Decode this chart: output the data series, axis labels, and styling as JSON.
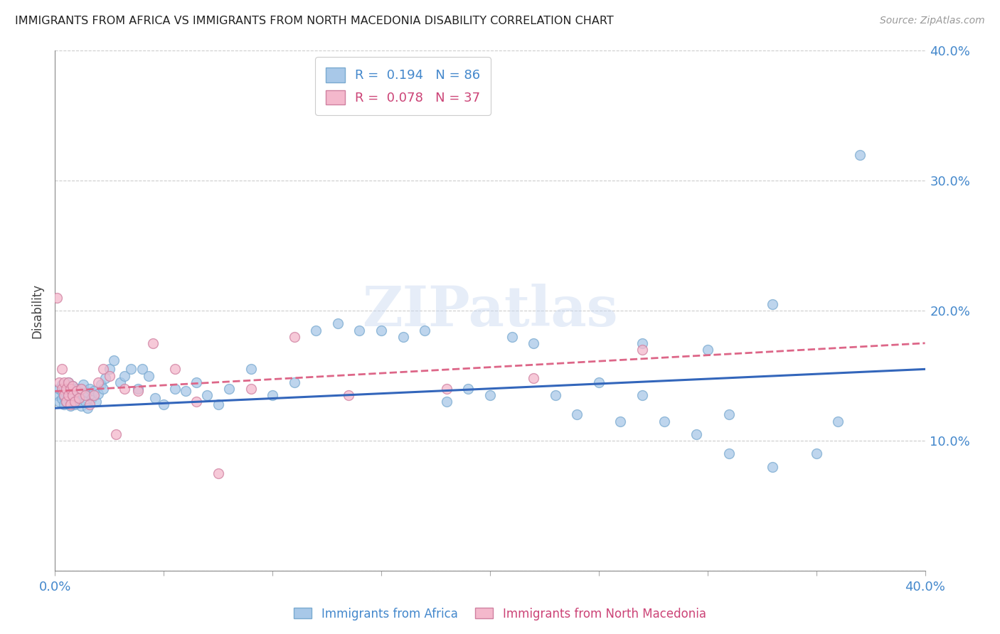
{
  "title": "IMMIGRANTS FROM AFRICA VS IMMIGRANTS FROM NORTH MACEDONIA DISABILITY CORRELATION CHART",
  "source": "Source: ZipAtlas.com",
  "ylabel": "Disability",
  "africa_color": "#a8c8e8",
  "africa_edge": "#7aaad0",
  "macedonia_color": "#f4b8cc",
  "macedonia_edge": "#d080a0",
  "africa_line_color": "#3366bb",
  "macedonia_line_color": "#dd6688",
  "africa_R": 0.194,
  "africa_N": 86,
  "macedonia_R": 0.078,
  "macedonia_N": 37,
  "watermark": "ZIPatlas",
  "legend_label_africa": "Immigrants from Africa",
  "legend_label_macedonia": "Immigrants from North Macedonia",
  "xlim": [
    0.0,
    0.4
  ],
  "ylim": [
    0.0,
    0.4
  ],
  "africa_scatter_x": [
    0.001,
    0.002,
    0.002,
    0.003,
    0.003,
    0.003,
    0.004,
    0.004,
    0.004,
    0.005,
    0.005,
    0.005,
    0.006,
    0.006,
    0.007,
    0.007,
    0.007,
    0.008,
    0.008,
    0.009,
    0.009,
    0.01,
    0.01,
    0.011,
    0.011,
    0.012,
    0.012,
    0.013,
    0.013,
    0.014,
    0.015,
    0.015,
    0.016,
    0.017,
    0.018,
    0.019,
    0.02,
    0.021,
    0.022,
    0.023,
    0.025,
    0.027,
    0.03,
    0.032,
    0.035,
    0.038,
    0.04,
    0.043,
    0.046,
    0.05,
    0.055,
    0.06,
    0.065,
    0.07,
    0.075,
    0.08,
    0.09,
    0.1,
    0.11,
    0.12,
    0.13,
    0.14,
    0.15,
    0.16,
    0.17,
    0.18,
    0.19,
    0.2,
    0.21,
    0.22,
    0.23,
    0.24,
    0.25,
    0.26,
    0.27,
    0.28,
    0.295,
    0.31,
    0.33,
    0.35,
    0.27,
    0.3,
    0.31,
    0.33,
    0.36,
    0.37
  ],
  "africa_scatter_y": [
    0.135,
    0.14,
    0.13,
    0.132,
    0.138,
    0.143,
    0.128,
    0.134,
    0.14,
    0.136,
    0.13,
    0.143,
    0.138,
    0.145,
    0.133,
    0.127,
    0.14,
    0.135,
    0.142,
    0.128,
    0.136,
    0.14,
    0.13,
    0.138,
    0.133,
    0.14,
    0.127,
    0.135,
    0.143,
    0.13,
    0.137,
    0.125,
    0.14,
    0.133,
    0.138,
    0.13,
    0.136,
    0.143,
    0.14,
    0.148,
    0.155,
    0.162,
    0.145,
    0.15,
    0.155,
    0.14,
    0.155,
    0.15,
    0.133,
    0.128,
    0.14,
    0.138,
    0.145,
    0.135,
    0.128,
    0.14,
    0.155,
    0.135,
    0.145,
    0.185,
    0.19,
    0.185,
    0.185,
    0.18,
    0.185,
    0.13,
    0.14,
    0.135,
    0.18,
    0.175,
    0.135,
    0.12,
    0.145,
    0.115,
    0.135,
    0.115,
    0.105,
    0.09,
    0.08,
    0.09,
    0.175,
    0.17,
    0.12,
    0.205,
    0.115,
    0.32
  ],
  "macedonia_scatter_x": [
    0.001,
    0.002,
    0.003,
    0.003,
    0.004,
    0.004,
    0.005,
    0.005,
    0.006,
    0.006,
    0.007,
    0.007,
    0.008,
    0.008,
    0.009,
    0.01,
    0.011,
    0.012,
    0.014,
    0.016,
    0.018,
    0.02,
    0.022,
    0.025,
    0.028,
    0.032,
    0.038,
    0.045,
    0.055,
    0.065,
    0.075,
    0.09,
    0.11,
    0.135,
    0.18,
    0.22,
    0.27
  ],
  "macedonia_scatter_y": [
    0.21,
    0.145,
    0.155,
    0.14,
    0.145,
    0.135,
    0.14,
    0.13,
    0.135,
    0.145,
    0.14,
    0.128,
    0.135,
    0.142,
    0.13,
    0.138,
    0.133,
    0.14,
    0.135,
    0.128,
    0.135,
    0.145,
    0.155,
    0.15,
    0.105,
    0.14,
    0.138,
    0.175,
    0.155,
    0.13,
    0.075,
    0.14,
    0.18,
    0.135,
    0.14,
    0.148,
    0.17
  ],
  "africa_trend_x0": 0.0,
  "africa_trend_x1": 0.4,
  "africa_trend_y0": 0.125,
  "africa_trend_y1": 0.155,
  "macedonia_trend_x0": 0.0,
  "macedonia_trend_x1": 0.4,
  "macedonia_trend_y0": 0.138,
  "macedonia_trend_y1": 0.175
}
